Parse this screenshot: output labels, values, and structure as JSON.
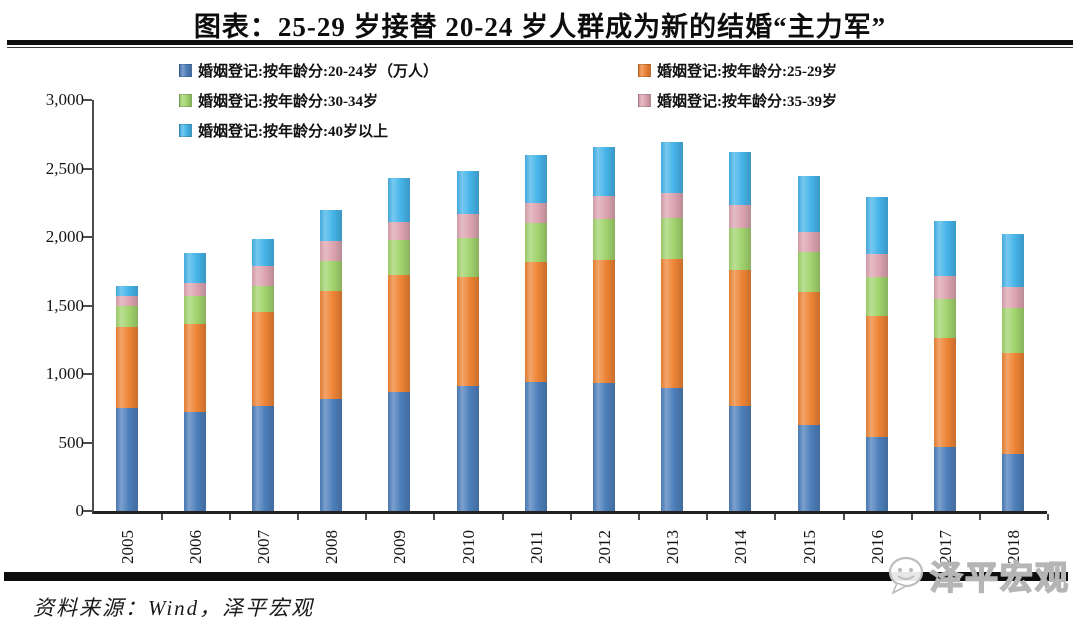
{
  "title": "图表：25-29 岁接替 20-24 岁人群成为新的结婚“主力军”",
  "source_note": "资料来源：Wind，泽平宏观",
  "watermark": {
    "text": "泽平宏观",
    "icon": "chat-bubble-smiley-icon"
  },
  "chart_data": {
    "type": "bar",
    "stacked": true,
    "title": "图表：25-29 岁接替 20-24 岁人群成为新的结婚“主力军”",
    "unit": "万人",
    "categories": [
      "2005",
      "2006",
      "2007",
      "2008",
      "2009",
      "2010",
      "2011",
      "2012",
      "2013",
      "2014",
      "2015",
      "2016",
      "2017",
      "2018"
    ],
    "series": [
      {
        "name": "婚姻登记:按年龄分:20-24岁（万人）",
        "color": "#4d7fbb",
        "values": [
          755,
          720,
          765,
          820,
          870,
          915,
          945,
          935,
          895,
          765,
          625,
          540,
          465,
          415
        ]
      },
      {
        "name": "婚姻登记:按年龄分:25-29岁",
        "color": "#ee8435",
        "values": [
          585,
          645,
          690,
          785,
          850,
          790,
          870,
          895,
          945,
          995,
          975,
          880,
          800,
          740
        ]
      },
      {
        "name": "婚姻登记:按年龄分:30-34岁",
        "color": "#a2d46e",
        "values": [
          155,
          205,
          185,
          220,
          260,
          285,
          290,
          300,
          300,
          305,
          290,
          290,
          285,
          325
        ]
      },
      {
        "name": "婚姻登记:按年龄分:35-39岁",
        "color": "#dda5b1",
        "values": [
          75,
          95,
          145,
          145,
          130,
          175,
          145,
          170,
          180,
          170,
          150,
          165,
          165,
          155
        ]
      },
      {
        "name": "婚姻登记:按年龄分:40岁以上",
        "color": "#46b4e9",
        "values": [
          75,
          220,
          200,
          225,
          320,
          320,
          350,
          355,
          375,
          385,
          405,
          415,
          405,
          390
        ]
      }
    ],
    "totals": [
      1645,
      1885,
      1985,
      2195,
      2430,
      2485,
      2600,
      2655,
      2695,
      2620,
      2445,
      2290,
      2120,
      2025
    ],
    "xlabel": "",
    "ylabel": "",
    "ylim": [
      0,
      3000
    ],
    "ytick_step": 500,
    "ytick_labels": [
      "0",
      "500",
      "1,000",
      "1,500",
      "2,000",
      "2,500",
      "3,000"
    ],
    "grid": false,
    "legend_position": "top-left-two-columns"
  }
}
